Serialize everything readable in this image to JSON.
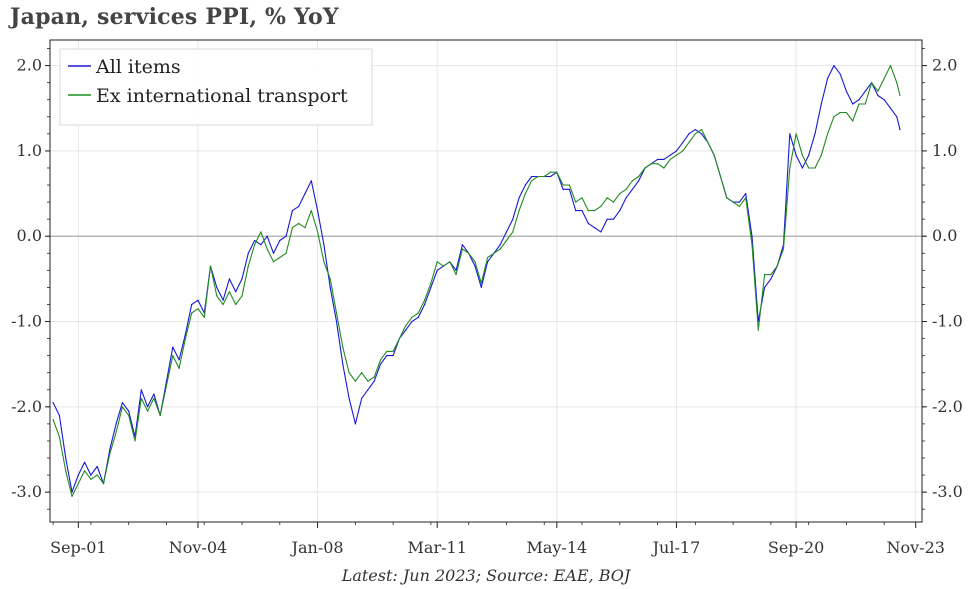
{
  "title": "Japan, services PPI, % YoY",
  "footnote": "Latest: Jun 2023; Source: EAE, BOJ",
  "colors": {
    "all_items": "#1818d8",
    "ex_transport": "#228b22",
    "grid": "#e6e6e6",
    "zero_line": "#a0a0a0"
  },
  "chart_data": {
    "type": "line",
    "title": "Japan, services PPI, % YoY",
    "xlabel": "",
    "ylabel": "",
    "ylim": [
      -3.35,
      2.3
    ],
    "xlim": [
      "2000-12",
      "2024-01"
    ],
    "yticks": [
      -3.0,
      -2.0,
      -1.0,
      0.0,
      1.0,
      2.0
    ],
    "ytick_labels": [
      "-3.0",
      "-2.0",
      "-1.0",
      "0.0",
      "1.0",
      "2.0"
    ],
    "xticks": [
      "2001-09",
      "2004-11",
      "2008-01",
      "2011-03",
      "2014-05",
      "2017-07",
      "2020-09",
      "2023-11"
    ],
    "xtick_labels": [
      "Sep-01",
      "Nov-04",
      "Jan-08",
      "Mar-11",
      "May-14",
      "Jul-17",
      "Sep-20",
      "Nov-23"
    ],
    "grid": true,
    "legend": "top-left",
    "series": [
      {
        "name": "All items",
        "color": "#1818d8",
        "points": [
          [
            "2001-01",
            -1.95
          ],
          [
            "2001-03",
            -2.1
          ],
          [
            "2001-05",
            -2.6
          ],
          [
            "2001-07",
            -3.0
          ],
          [
            "2001-09",
            -2.8
          ],
          [
            "2001-11",
            -2.65
          ],
          [
            "2002-01",
            -2.8
          ],
          [
            "2002-03",
            -2.7
          ],
          [
            "2002-05",
            -2.9
          ],
          [
            "2002-07",
            -2.5
          ],
          [
            "2002-09",
            -2.2
          ],
          [
            "2002-11",
            -1.95
          ],
          [
            "2003-01",
            -2.05
          ],
          [
            "2003-03",
            -2.35
          ],
          [
            "2003-05",
            -1.8
          ],
          [
            "2003-07",
            -2.0
          ],
          [
            "2003-09",
            -1.85
          ],
          [
            "2003-11",
            -2.1
          ],
          [
            "2004-01",
            -1.7
          ],
          [
            "2004-03",
            -1.3
          ],
          [
            "2004-05",
            -1.45
          ],
          [
            "2004-07",
            -1.15
          ],
          [
            "2004-09",
            -0.8
          ],
          [
            "2004-11",
            -0.75
          ],
          [
            "2005-01",
            -0.9
          ],
          [
            "2005-03",
            -0.35
          ],
          [
            "2005-05",
            -0.6
          ],
          [
            "2005-07",
            -0.75
          ],
          [
            "2005-09",
            -0.5
          ],
          [
            "2005-11",
            -0.65
          ],
          [
            "2006-01",
            -0.5
          ],
          [
            "2006-03",
            -0.2
          ],
          [
            "2006-05",
            -0.05
          ],
          [
            "2006-07",
            -0.1
          ],
          [
            "2006-09",
            0.0
          ],
          [
            "2006-11",
            -0.2
          ],
          [
            "2007-01",
            -0.05
          ],
          [
            "2007-03",
            0.0
          ],
          [
            "2007-05",
            0.3
          ],
          [
            "2007-07",
            0.35
          ],
          [
            "2007-09",
            0.5
          ],
          [
            "2007-11",
            0.65
          ],
          [
            "2008-01",
            0.3
          ],
          [
            "2008-03",
            -0.1
          ],
          [
            "2008-05",
            -0.6
          ],
          [
            "2008-07",
            -1.0
          ],
          [
            "2008-09",
            -1.5
          ],
          [
            "2008-11",
            -1.9
          ],
          [
            "2009-01",
            -2.2
          ],
          [
            "2009-03",
            -1.9
          ],
          [
            "2009-05",
            -1.8
          ],
          [
            "2009-07",
            -1.7
          ],
          [
            "2009-09",
            -1.5
          ],
          [
            "2009-11",
            -1.4
          ],
          [
            "2010-01",
            -1.4
          ],
          [
            "2010-03",
            -1.2
          ],
          [
            "2010-05",
            -1.1
          ],
          [
            "2010-07",
            -1.0
          ],
          [
            "2010-09",
            -0.95
          ],
          [
            "2010-11",
            -0.8
          ],
          [
            "2011-01",
            -0.6
          ],
          [
            "2011-03",
            -0.4
          ],
          [
            "2011-05",
            -0.35
          ],
          [
            "2011-07",
            -0.3
          ],
          [
            "2011-09",
            -0.4
          ],
          [
            "2011-11",
            -0.1
          ],
          [
            "2012-01",
            -0.2
          ],
          [
            "2012-03",
            -0.35
          ],
          [
            "2012-05",
            -0.6
          ],
          [
            "2012-07",
            -0.3
          ],
          [
            "2012-09",
            -0.2
          ],
          [
            "2012-11",
            -0.1
          ],
          [
            "2013-01",
            0.05
          ],
          [
            "2013-03",
            0.2
          ],
          [
            "2013-05",
            0.45
          ],
          [
            "2013-07",
            0.6
          ],
          [
            "2013-09",
            0.7
          ],
          [
            "2013-11",
            0.7
          ],
          [
            "2014-01",
            0.7
          ],
          [
            "2014-03",
            0.7
          ],
          [
            "2014-05",
            0.75
          ],
          [
            "2014-07",
            0.55
          ],
          [
            "2014-09",
            0.55
          ],
          [
            "2014-11",
            0.3
          ],
          [
            "2015-01",
            0.3
          ],
          [
            "2015-03",
            0.15
          ],
          [
            "2015-05",
            0.1
          ],
          [
            "2015-07",
            0.05
          ],
          [
            "2015-09",
            0.2
          ],
          [
            "2015-11",
            0.2
          ],
          [
            "2016-01",
            0.3
          ],
          [
            "2016-03",
            0.45
          ],
          [
            "2016-05",
            0.55
          ],
          [
            "2016-07",
            0.65
          ],
          [
            "2016-09",
            0.8
          ],
          [
            "2016-11",
            0.85
          ],
          [
            "2017-01",
            0.9
          ],
          [
            "2017-03",
            0.9
          ],
          [
            "2017-05",
            0.95
          ],
          [
            "2017-07",
            1.0
          ],
          [
            "2017-09",
            1.1
          ],
          [
            "2017-11",
            1.2
          ],
          [
            "2018-01",
            1.25
          ],
          [
            "2018-03",
            1.2
          ],
          [
            "2018-05",
            1.1
          ],
          [
            "2018-07",
            0.95
          ],
          [
            "2018-09",
            0.7
          ],
          [
            "2018-11",
            0.45
          ],
          [
            "2019-01",
            0.4
          ],
          [
            "2019-03",
            0.4
          ],
          [
            "2019-05",
            0.5
          ],
          [
            "2019-07",
            0.0
          ],
          [
            "2019-09",
            -1.0
          ],
          [
            "2019-11",
            -0.6
          ],
          [
            "2020-01",
            -0.5
          ],
          [
            "2020-03",
            -0.35
          ],
          [
            "2020-05",
            -0.1
          ],
          [
            "2020-07",
            1.2
          ],
          [
            "2020-09",
            0.95
          ],
          [
            "2020-11",
            0.8
          ],
          [
            "2021-01",
            0.95
          ],
          [
            "2021-03",
            1.2
          ],
          [
            "2021-05",
            1.55
          ],
          [
            "2021-07",
            1.85
          ],
          [
            "2021-09",
            2.0
          ],
          [
            "2021-11",
            1.9
          ],
          [
            "2022-01",
            1.7
          ],
          [
            "2022-03",
            1.55
          ],
          [
            "2022-05",
            1.6
          ],
          [
            "2022-07",
            1.7
          ],
          [
            "2022-09",
            1.8
          ],
          [
            "2022-11",
            1.65
          ],
          [
            "2023-01",
            1.6
          ],
          [
            "2023-03",
            1.5
          ],
          [
            "2023-05",
            1.4
          ],
          [
            "2023-06",
            1.25
          ]
        ]
      },
      {
        "name": "Ex international transport",
        "color": "#228b22",
        "points": [
          [
            "2001-01",
            -2.15
          ],
          [
            "2001-03",
            -2.35
          ],
          [
            "2001-05",
            -2.75
          ],
          [
            "2001-07",
            -3.05
          ],
          [
            "2001-09",
            -2.9
          ],
          [
            "2001-11",
            -2.75
          ],
          [
            "2002-01",
            -2.85
          ],
          [
            "2002-03",
            -2.8
          ],
          [
            "2002-05",
            -2.9
          ],
          [
            "2002-07",
            -2.55
          ],
          [
            "2002-09",
            -2.3
          ],
          [
            "2002-11",
            -2.0
          ],
          [
            "2003-01",
            -2.1
          ],
          [
            "2003-03",
            -2.4
          ],
          [
            "2003-05",
            -1.9
          ],
          [
            "2003-07",
            -2.05
          ],
          [
            "2003-09",
            -1.9
          ],
          [
            "2003-11",
            -2.1
          ],
          [
            "2004-01",
            -1.75
          ],
          [
            "2004-03",
            -1.4
          ],
          [
            "2004-05",
            -1.55
          ],
          [
            "2004-07",
            -1.2
          ],
          [
            "2004-09",
            -0.9
          ],
          [
            "2004-11",
            -0.85
          ],
          [
            "2005-01",
            -0.95
          ],
          [
            "2005-03",
            -0.35
          ],
          [
            "2005-05",
            -0.7
          ],
          [
            "2005-07",
            -0.8
          ],
          [
            "2005-09",
            -0.65
          ],
          [
            "2005-11",
            -0.8
          ],
          [
            "2006-01",
            -0.7
          ],
          [
            "2006-03",
            -0.35
          ],
          [
            "2006-05",
            -0.1
          ],
          [
            "2006-07",
            0.05
          ],
          [
            "2006-09",
            -0.15
          ],
          [
            "2006-11",
            -0.3
          ],
          [
            "2007-01",
            -0.25
          ],
          [
            "2007-03",
            -0.2
          ],
          [
            "2007-05",
            0.1
          ],
          [
            "2007-07",
            0.15
          ],
          [
            "2007-09",
            0.1
          ],
          [
            "2007-11",
            0.3
          ],
          [
            "2008-01",
            0.05
          ],
          [
            "2008-03",
            -0.3
          ],
          [
            "2008-05",
            -0.5
          ],
          [
            "2008-07",
            -0.9
          ],
          [
            "2008-09",
            -1.3
          ],
          [
            "2008-11",
            -1.6
          ],
          [
            "2009-01",
            -1.7
          ],
          [
            "2009-03",
            -1.6
          ],
          [
            "2009-05",
            -1.7
          ],
          [
            "2009-07",
            -1.65
          ],
          [
            "2009-09",
            -1.45
          ],
          [
            "2009-11",
            -1.35
          ],
          [
            "2010-01",
            -1.35
          ],
          [
            "2010-03",
            -1.2
          ],
          [
            "2010-05",
            -1.05
          ],
          [
            "2010-07",
            -0.95
          ],
          [
            "2010-09",
            -0.9
          ],
          [
            "2010-11",
            -0.75
          ],
          [
            "2011-01",
            -0.55
          ],
          [
            "2011-03",
            -0.3
          ],
          [
            "2011-05",
            -0.35
          ],
          [
            "2011-07",
            -0.3
          ],
          [
            "2011-09",
            -0.45
          ],
          [
            "2011-11",
            -0.15
          ],
          [
            "2012-01",
            -0.2
          ],
          [
            "2012-03",
            -0.3
          ],
          [
            "2012-05",
            -0.55
          ],
          [
            "2012-07",
            -0.25
          ],
          [
            "2012-09",
            -0.2
          ],
          [
            "2012-11",
            -0.15
          ],
          [
            "2013-01",
            -0.05
          ],
          [
            "2013-03",
            0.05
          ],
          [
            "2013-05",
            0.3
          ],
          [
            "2013-07",
            0.5
          ],
          [
            "2013-09",
            0.65
          ],
          [
            "2013-11",
            0.7
          ],
          [
            "2014-01",
            0.7
          ],
          [
            "2014-03",
            0.75
          ],
          [
            "2014-05",
            0.75
          ],
          [
            "2014-07",
            0.6
          ],
          [
            "2014-09",
            0.6
          ],
          [
            "2014-11",
            0.4
          ],
          [
            "2015-01",
            0.45
          ],
          [
            "2015-03",
            0.3
          ],
          [
            "2015-05",
            0.3
          ],
          [
            "2015-07",
            0.35
          ],
          [
            "2015-09",
            0.45
          ],
          [
            "2015-11",
            0.4
          ],
          [
            "2016-01",
            0.5
          ],
          [
            "2016-03",
            0.55
          ],
          [
            "2016-05",
            0.65
          ],
          [
            "2016-07",
            0.7
          ],
          [
            "2016-09",
            0.8
          ],
          [
            "2016-11",
            0.85
          ],
          [
            "2017-01",
            0.85
          ],
          [
            "2017-03",
            0.8
          ],
          [
            "2017-05",
            0.9
          ],
          [
            "2017-07",
            0.95
          ],
          [
            "2017-09",
            1.0
          ],
          [
            "2017-11",
            1.1
          ],
          [
            "2018-01",
            1.2
          ],
          [
            "2018-03",
            1.25
          ],
          [
            "2018-05",
            1.1
          ],
          [
            "2018-07",
            0.95
          ],
          [
            "2018-09",
            0.7
          ],
          [
            "2018-11",
            0.45
          ],
          [
            "2019-01",
            0.4
          ],
          [
            "2019-03",
            0.35
          ],
          [
            "2019-05",
            0.45
          ],
          [
            "2019-07",
            -0.1
          ],
          [
            "2019-09",
            -1.1
          ],
          [
            "2019-11",
            -0.45
          ],
          [
            "2020-01",
            -0.45
          ],
          [
            "2020-03",
            -0.35
          ],
          [
            "2020-05",
            -0.15
          ],
          [
            "2020-07",
            0.8
          ],
          [
            "2020-09",
            1.2
          ],
          [
            "2020-11",
            0.95
          ],
          [
            "2021-01",
            0.8
          ],
          [
            "2021-03",
            0.8
          ],
          [
            "2021-05",
            0.95
          ],
          [
            "2021-07",
            1.2
          ],
          [
            "2021-09",
            1.4
          ],
          [
            "2021-11",
            1.45
          ],
          [
            "2022-01",
            1.45
          ],
          [
            "2022-03",
            1.35
          ],
          [
            "2022-05",
            1.55
          ],
          [
            "2022-07",
            1.55
          ],
          [
            "2022-09",
            1.8
          ],
          [
            "2022-11",
            1.7
          ],
          [
            "2023-01",
            1.85
          ],
          [
            "2023-03",
            2.0
          ],
          [
            "2023-05",
            1.8
          ],
          [
            "2023-06",
            1.65
          ]
        ]
      }
    ]
  }
}
